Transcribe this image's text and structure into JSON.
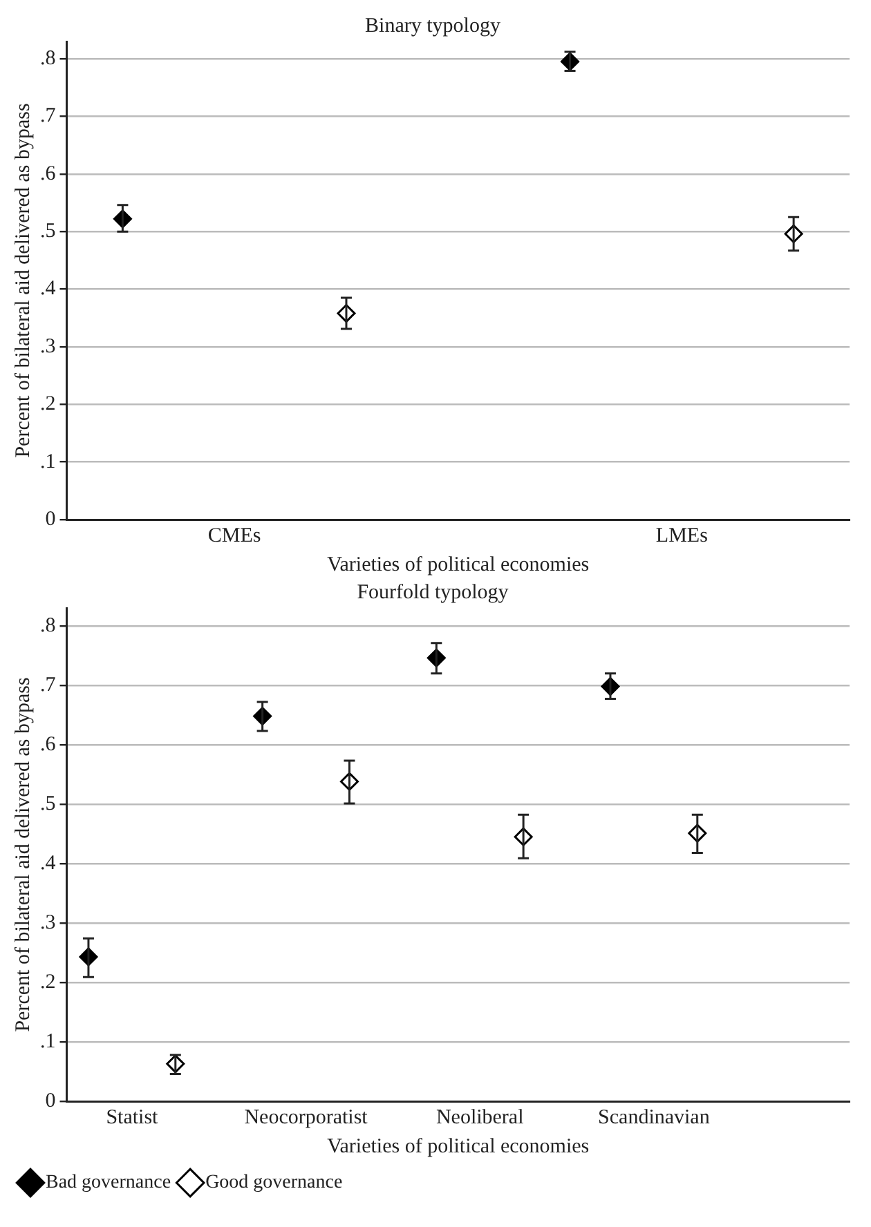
{
  "chart_data": [
    {
      "type": "scatter",
      "title": "Binary typology",
      "xlabel": "Varieties of political economies",
      "ylabel": "Percent of bilateral aid delivered as bypass",
      "categories": [
        null,
        "CMEs",
        null,
        null,
        null,
        "LMEs",
        null
      ],
      "ylim": [
        0,
        0.83
      ],
      "yticks": [
        {
          "value": 0,
          "label": "0"
        },
        {
          "value": 0.1,
          "label": ".1"
        },
        {
          "value": 0.2,
          "label": ".2"
        },
        {
          "value": 0.3,
          "label": ".3"
        },
        {
          "value": 0.4,
          "label": ".4"
        },
        {
          "value": 0.5,
          "label": ".5"
        },
        {
          "value": 0.6,
          "label": ".6"
        },
        {
          "value": 0.7,
          "label": ".7"
        },
        {
          "value": 0.8,
          "label": ".8"
        }
      ],
      "grid": "y",
      "marker": "diamond",
      "legend": false,
      "series": [
        {
          "color": "#000000",
          "values": [
            0.522,
            null,
            null,
            null,
            0.795,
            null,
            null
          ],
          "errors": [
            [
              0.5,
              0.546
            ],
            null,
            null,
            null,
            [
              0.779,
              0.812
            ],
            null,
            null
          ]
        },
        {
          "color": "#ffffff",
          "values": [
            null,
            null,
            0.358,
            null,
            null,
            null,
            0.496
          ],
          "errors": [
            null,
            null,
            [
              0.331,
              0.385
            ],
            null,
            null,
            null,
            [
              0.467,
              0.525
            ]
          ]
        }
      ]
    },
    {
      "type": "scatter",
      "title": "Fourfold typology",
      "xlabel": "Varieties of political economies",
      "ylabel": "Percent of bilateral aid delivered as bypass",
      "categories": [
        null,
        "Statist",
        null,
        null,
        null,
        "Neocorporatist",
        null,
        null,
        null,
        "Neoliberal",
        null,
        null,
        null,
        "Scandinavian",
        null,
        null,
        null,
        null
      ],
      "ylim": [
        0,
        0.83
      ],
      "yticks": [
        {
          "value": 0,
          "label": "0"
        },
        {
          "value": 0.1,
          "label": ".1"
        },
        {
          "value": 0.2,
          "label": ".2"
        },
        {
          "value": 0.3,
          "label": ".3"
        },
        {
          "value": 0.4,
          "label": ".4"
        },
        {
          "value": 0.5,
          "label": ".5"
        },
        {
          "value": 0.6,
          "label": ".6"
        },
        {
          "value": 0.7,
          "label": ".7"
        },
        {
          "value": 0.8,
          "label": ".8"
        }
      ],
      "grid": "y",
      "marker": "diamond",
      "legend": "bottom left",
      "series": [
        {
          "name": "Bad governance",
          "color": "#000000",
          "values": [
            0.243,
            null,
            null,
            null,
            0.648,
            null,
            null,
            null,
            0.746,
            null,
            null,
            null,
            0.698,
            null,
            null,
            null,
            null,
            null
          ],
          "errors": [
            [
              0.209,
              0.274
            ],
            null,
            null,
            null,
            [
              0.623,
              0.672
            ],
            null,
            null,
            null,
            [
              0.72,
              0.771
            ],
            null,
            null,
            null,
            [
              0.677,
              0.72
            ],
            null,
            null,
            null,
            null,
            null
          ]
        },
        {
          "name": "Good governance",
          "color": "#ffffff",
          "values": [
            null,
            null,
            0.063,
            null,
            null,
            null,
            0.538,
            null,
            null,
            null,
            0.445,
            null,
            null,
            null,
            0.451,
            null,
            null,
            null
          ],
          "errors": [
            null,
            null,
            [
              0.046,
              0.078
            ],
            null,
            null,
            null,
            [
              0.501,
              0.573
            ],
            null,
            null,
            null,
            [
              0.409,
              0.482
            ],
            null,
            null,
            null,
            [
              0.418,
              0.482
            ],
            null,
            null,
            null
          ]
        }
      ]
    }
  ]
}
